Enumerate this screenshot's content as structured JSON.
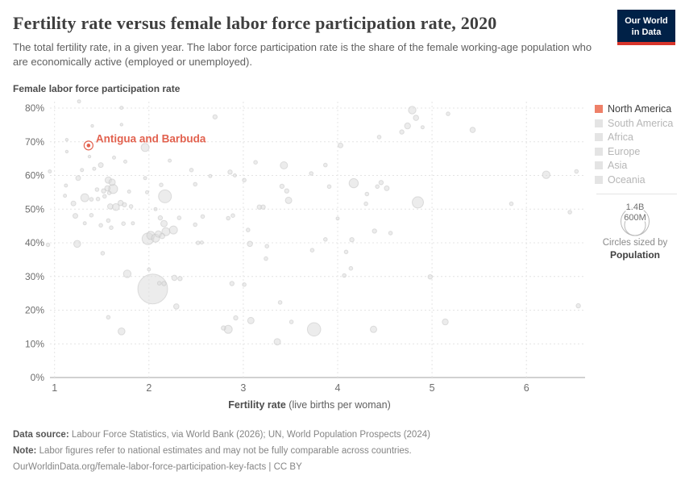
{
  "header": {
    "title": "Fertility rate versus female labor force participation rate, 2020",
    "subtitle": "The total fertility rate, in a given year. The labor force participation rate is the share of the female working-age population who are economically active (employed or unemployed).",
    "logo": {
      "line1": "Our World",
      "line2": "in Data"
    }
  },
  "colors": {
    "accent": "#e2614e",
    "north_america_swatch": "#ee8068",
    "inactive_swatch": "#e4e4e4",
    "inactive_text": "#b6b6b6",
    "active_text": "#3d3d3d",
    "circle_fill": "#dcdcdc",
    "circle_stroke": "#c2c2c2",
    "grid": "#e4e4e4",
    "axis_line": "#a3a3a3",
    "tick_text": "#6e6e6e",
    "logo_bg": "#002147",
    "logo_bar": "#d8352b"
  },
  "axes": {
    "y": {
      "title": "Female labor force participation rate",
      "tick_values": [
        0,
        10,
        20,
        30,
        40,
        50,
        60,
        70,
        80
      ],
      "tick_labels": [
        "0%",
        "10%",
        "20%",
        "30%",
        "40%",
        "50%",
        "60%",
        "70%",
        "80%"
      ]
    },
    "x": {
      "label_bold": "Fertility rate",
      "label_normal": " (live births per woman)",
      "tick_values": [
        1,
        2,
        3,
        4,
        5,
        6
      ]
    }
  },
  "legend": {
    "items": [
      {
        "label": "North America",
        "active": true
      },
      {
        "label": "South America",
        "active": false
      },
      {
        "label": "Africa",
        "active": false
      },
      {
        "label": "Europe",
        "active": false
      },
      {
        "label": "Asia",
        "active": false
      },
      {
        "label": "Oceania",
        "active": false
      }
    ]
  },
  "size_legend": {
    "big_label": "1.4B",
    "small_label": "600M",
    "caption": "Circles sized by",
    "caption_bold": "Population"
  },
  "annotation": {
    "label": "Antigua and Barbuda",
    "fertility": 1.36,
    "participation_pct": 68.9
  },
  "footer": {
    "source_bold": "Data source:",
    "source_text": " Labour Force Statistics, via World Bank (2026); UN, World Population Prospects (2024)",
    "note_bold": "Note:",
    "note_text": " Labor figures refer to national estimates and may not be fully comparable across countries.",
    "link": "OurWorldinData.org/female-labor-force-participation-key-facts | CC BY"
  },
  "chart_data": {
    "type": "scatter",
    "title": "Fertility rate versus female labor force participation rate, 2020",
    "xlabel": "Fertility rate (live births per woman)",
    "ylabel": "Female labor force participation rate",
    "xlim": [
      0.85,
      6.65
    ],
    "ylim": [
      0,
      80
    ],
    "x_ticks": [
      1,
      2,
      3,
      4,
      5,
      6
    ],
    "y_ticks_percent": [
      0,
      10,
      20,
      30,
      40,
      50,
      60,
      70,
      80
    ],
    "grid": true,
    "legend_position": "right",
    "sized_by": "Population",
    "points_format": [
      "fertility",
      "participation_pct",
      "radius_px"
    ],
    "highlight_point": {
      "name": "Antigua and Barbuda",
      "fertility": 1.36,
      "participation_pct": 68.9,
      "radius_px": 2.3
    },
    "points": [
      [
        1.26,
        82.0,
        2
      ],
      [
        1.71,
        80.1,
        2
      ],
      [
        2.7,
        77.4,
        2.7
      ],
      [
        4.79,
        79.4,
        4.7
      ],
      [
        5.17,
        78.3,
        2.3
      ],
      [
        4.83,
        77.1,
        3.3
      ],
      [
        1.4,
        74.7,
        1.7
      ],
      [
        1.71,
        75.1,
        1.7
      ],
      [
        4.74,
        74.7,
        3.7
      ],
      [
        4.9,
        74.3,
        2
      ],
      [
        4.68,
        72.9,
        2.7
      ],
      [
        5.43,
        73.5,
        3.3
      ],
      [
        4.44,
        71.4,
        2.3
      ],
      [
        1.13,
        70.6,
        1.7
      ],
      [
        1.96,
        68.3,
        5
      ],
      [
        4.03,
        68.9,
        3
      ],
      [
        1.13,
        67.1,
        1.7
      ],
      [
        1.63,
        65.3,
        2
      ],
      [
        1.37,
        65.6,
        1.7
      ],
      [
        1.75,
        64.1,
        2
      ],
      [
        2.22,
        64.4,
        2
      ],
      [
        3.13,
        63.9,
        2.3
      ],
      [
        3.43,
        63.0,
        4.5
      ],
      [
        3.87,
        63.1,
        2.3
      ],
      [
        2.45,
        61.6,
        2.3
      ],
      [
        1.49,
        63.1,
        3
      ],
      [
        1.42,
        62.0,
        2
      ],
      [
        1.29,
        61.6,
        2
      ],
      [
        0.95,
        61.2,
        2
      ],
      [
        6.21,
        60.2,
        4.7
      ],
      [
        6.53,
        61.2,
        2.3
      ],
      [
        2.65,
        59.8,
        2
      ],
      [
        2.86,
        61.0,
        2.7
      ],
      [
        2.91,
        60.0,
        2
      ],
      [
        3.72,
        60.6,
        2.3
      ],
      [
        1.25,
        59.2,
        3
      ],
      [
        1.96,
        59.2,
        2
      ],
      [
        1.57,
        58.6,
        4
      ],
      [
        1.61,
        58.0,
        4
      ],
      [
        3.01,
        58.6,
        2.3
      ],
      [
        2.49,
        57.4,
        2.3
      ],
      [
        4.17,
        57.7,
        5.7
      ],
      [
        4.46,
        57.9,
        2.7
      ],
      [
        4.42,
        56.7,
        2.3
      ],
      [
        4.52,
        56.2,
        3
      ],
      [
        1.12,
        57.0,
        2
      ],
      [
        1.56,
        56.2,
        3.3
      ],
      [
        1.45,
        55.8,
        2.3
      ],
      [
        1.52,
        55.4,
        2.7
      ],
      [
        1.62,
        56.0,
        5.7
      ],
      [
        2.17,
        53.8,
        8
      ],
      [
        3.41,
        56.8,
        2.7
      ],
      [
        3.46,
        55.4,
        2.7
      ],
      [
        3.91,
        56.7,
        2.3
      ],
      [
        2.13,
        57.2,
        2.3
      ],
      [
        1.32,
        53.4,
        5
      ],
      [
        1.39,
        52.9,
        2.3
      ],
      [
        1.46,
        53.0,
        2.3
      ],
      [
        1.53,
        53.8,
        2.3
      ],
      [
        1.58,
        54.8,
        2.3
      ],
      [
        1.79,
        55.2,
        2
      ],
      [
        1.98,
        55.0,
        2
      ],
      [
        3.48,
        52.6,
        4
      ],
      [
        1.11,
        54.0,
        2
      ],
      [
        1.2,
        51.7,
        3
      ],
      [
        1.59,
        50.8,
        3.3
      ],
      [
        1.65,
        50.6,
        4.3
      ],
      [
        1.7,
        51.8,
        3.3
      ],
      [
        1.74,
        51.3,
        2.7
      ],
      [
        1.81,
        50.8,
        2.3
      ],
      [
        2.07,
        50.0,
        2
      ],
      [
        3.17,
        50.6,
        2.7
      ],
      [
        3.21,
        50.6,
        2.7
      ],
      [
        4.85,
        52.0,
        7
      ],
      [
        4.3,
        51.6,
        2.3
      ],
      [
        4.31,
        54.5,
        2.3
      ],
      [
        5.84,
        51.6,
        2.3
      ],
      [
        1.22,
        48.0,
        3
      ],
      [
        1.32,
        45.8,
        2
      ],
      [
        1.39,
        48.2,
        2.3
      ],
      [
        1.49,
        45.2,
        2.3
      ],
      [
        1.6,
        44.5,
        2.3
      ],
      [
        1.57,
        46.6,
        2.3
      ],
      [
        1.73,
        45.7,
        2.3
      ],
      [
        1.83,
        45.8,
        2
      ],
      [
        2.12,
        47.4,
        2.7
      ],
      [
        2.16,
        45.7,
        4
      ],
      [
        2.18,
        43.3,
        5
      ],
      [
        2.02,
        42.2,
        5
      ],
      [
        2.1,
        42.6,
        4
      ],
      [
        2.26,
        43.8,
        5
      ],
      [
        2.32,
        47.4,
        2.3
      ],
      [
        2.49,
        45.4,
        2.3
      ],
      [
        2.57,
        47.8,
        2.3
      ],
      [
        2.84,
        47.3,
        2.3
      ],
      [
        2.89,
        48.1,
        2.3
      ],
      [
        3.05,
        43.8,
        2.3
      ],
      [
        4.0,
        47.2,
        2
      ],
      [
        4.39,
        43.5,
        2.7
      ],
      [
        4.56,
        42.9,
        2.3
      ],
      [
        6.46,
        49.1,
        2.3
      ],
      [
        1.99,
        41.2,
        7.3
      ],
      [
        2.07,
        41.4,
        5
      ],
      [
        2.14,
        42.0,
        3.3
      ],
      [
        4.15,
        40.9,
        2.7
      ],
      [
        3.87,
        41.0,
        2.3
      ],
      [
        0.93,
        39.4,
        2.3
      ],
      [
        1.24,
        39.7,
        4.3
      ],
      [
        1.51,
        36.9,
        2.3
      ],
      [
        2.52,
        40.0,
        2.3
      ],
      [
        2.56,
        40.1,
        2
      ],
      [
        3.07,
        39.7,
        3.3
      ],
      [
        3.25,
        39.0,
        2.3
      ],
      [
        3.24,
        35.3,
        2.3
      ],
      [
        4.09,
        37.3,
        2.3
      ],
      [
        4.14,
        32.4,
        2.3
      ],
      [
        1.77,
        30.8,
        4.7
      ],
      [
        2.0,
        32.1,
        2
      ],
      [
        4.07,
        30.3,
        2.3
      ],
      [
        4.98,
        29.9,
        2.7
      ],
      [
        3.73,
        37.8,
        2.3
      ],
      [
        2.04,
        26.3,
        18.5
      ],
      [
        2.11,
        28.0,
        2.3
      ],
      [
        2.16,
        27.9,
        2.7
      ],
      [
        2.27,
        29.6,
        3.3
      ],
      [
        2.33,
        29.4,
        2.7
      ],
      [
        2.29,
        21.1,
        3.3
      ],
      [
        2.88,
        27.9,
        2.7
      ],
      [
        3.01,
        27.6,
        2.3
      ],
      [
        3.39,
        22.3,
        2.3
      ],
      [
        6.55,
        21.3,
        2.7
      ],
      [
        1.57,
        17.9,
        2.3
      ],
      [
        1.71,
        13.7,
        4.3
      ],
      [
        2.92,
        17.7,
        2.7
      ],
      [
        3.08,
        16.9,
        4
      ],
      [
        2.79,
        14.7,
        2.7
      ],
      [
        2.84,
        14.3,
        5
      ],
      [
        3.51,
        16.5,
        2.3
      ],
      [
        3.75,
        14.3,
        8.3
      ],
      [
        3.36,
        10.6,
        4
      ],
      [
        5.14,
        16.5,
        3.7
      ],
      [
        4.38,
        14.3,
        4
      ]
    ]
  }
}
